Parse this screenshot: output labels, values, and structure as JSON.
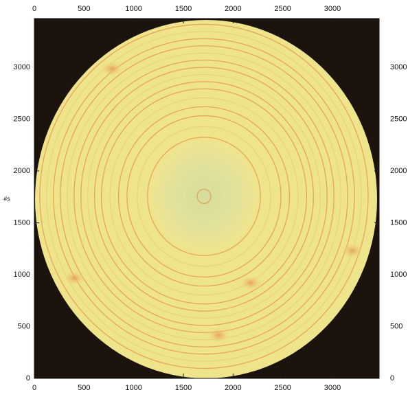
{
  "chart_data": {
    "type": "image",
    "y_label": "#s",
    "xlim": [
      0,
      3470
    ],
    "ylim": [
      0,
      3470
    ],
    "xticks": [
      0,
      500,
      1000,
      1500,
      2000,
      2500,
      3000
    ],
    "yticks": [
      0,
      500,
      1000,
      1500,
      2000,
      2500,
      3000
    ]
  }
}
